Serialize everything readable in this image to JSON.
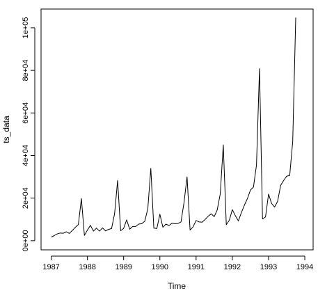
{
  "chart_data": {
    "type": "line",
    "title": "",
    "xlabel": "Time",
    "ylabel": "ts_data",
    "xlim": [
      1986.72,
      1994.23
    ],
    "ylim": [
      -4300,
      108800
    ],
    "grid": false,
    "x_ticks": [
      {
        "value": 1987,
        "label": "1987"
      },
      {
        "value": 1988,
        "label": "1988"
      },
      {
        "value": 1989,
        "label": "1989"
      },
      {
        "value": 1990,
        "label": "1990"
      },
      {
        "value": 1991,
        "label": "1991"
      },
      {
        "value": 1992,
        "label": "1992"
      },
      {
        "value": 1993,
        "label": "1993"
      },
      {
        "value": 1994,
        "label": "1994"
      }
    ],
    "y_ticks": [
      {
        "value": 0,
        "label": "0e+00"
      },
      {
        "value": 20000,
        "label": "2e+04"
      },
      {
        "value": 40000,
        "label": "4e+04"
      },
      {
        "value": 60000,
        "label": "6e+04"
      },
      {
        "value": 80000,
        "label": "8e+04"
      },
      {
        "value": 100000,
        "label": "1e+05"
      }
    ],
    "series": [
      {
        "start": 1987,
        "frequency": 12,
        "color": "#000000",
        "values": [
          1700,
          2400,
          3200,
          3600,
          3500,
          4200,
          3400,
          4800,
          6300,
          7600,
          19800,
          2500,
          5000,
          7200,
          4500,
          5900,
          4500,
          6000,
          4600,
          5300,
          5700,
          12700,
          28300,
          4700,
          5800,
          9800,
          5400,
          6700,
          6700,
          7800,
          8000,
          9200,
          15000,
          34000,
          5900,
          5700,
          12400,
          6300,
          7800,
          7100,
          8200,
          8000,
          8100,
          8800,
          18000,
          30000,
          5000,
          6500,
          9500,
          8800,
          8700,
          10000,
          11500,
          12600,
          11300,
          14500,
          22000,
          45000,
          7500,
          9600,
          14600,
          11700,
          9300,
          13200,
          16700,
          19800,
          23800,
          25200,
          35500,
          80800,
          10200,
          11200,
          21900,
          17500,
          15800,
          18500,
          26000,
          28300,
          30300,
          30600,
          46600,
          104800
        ]
      }
    ]
  }
}
